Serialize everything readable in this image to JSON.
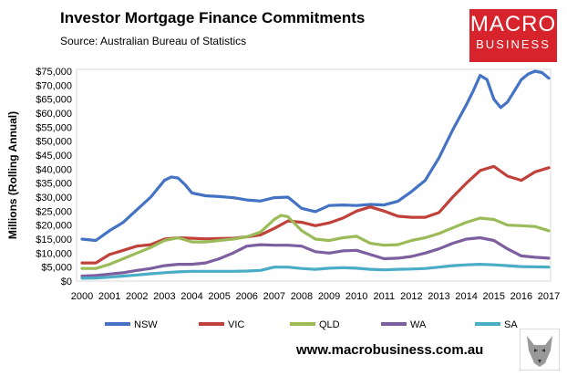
{
  "header": {
    "title": "Investor Mortgage Finance Commitments",
    "subtitle": "Source: Australian Bureau of Statistics"
  },
  "logo": {
    "line1": "MACRO",
    "line2": "BUSINESS"
  },
  "footer": {
    "url": "www.macrobusiness.com.au"
  },
  "colors": {
    "NSW": "#4472c4",
    "VIC": "#c0403a",
    "QLD": "#9bbb59",
    "WA": "#7d5fa0",
    "SA": "#4bacc6",
    "plot_border": "#d9d9d9"
  },
  "chart_data": {
    "type": "line",
    "ylabel": "Millions (Rolling Annual)",
    "xlabel": "",
    "xlim": [
      2000,
      2017
    ],
    "ylim": [
      0,
      75000
    ],
    "xticks": [
      "2000",
      "2001",
      "2002",
      "2003",
      "2004",
      "2005",
      "2006",
      "2007",
      "2008",
      "2009",
      "2010",
      "2011",
      "2012",
      "2013",
      "2014",
      "2015",
      "2016",
      "2017"
    ],
    "yticks": [
      "$0",
      "$5,000",
      "$10,000",
      "$15,000",
      "$20,000",
      "$25,000",
      "$30,000",
      "$35,000",
      "$40,000",
      "$45,000",
      "$50,000",
      "$55,000",
      "$60,000",
      "$65,000",
      "$70,000",
      "$75,000"
    ],
    "legend_position": "bottom",
    "grid": false,
    "series": [
      {
        "name": "NSW",
        "x": [
          2000,
          2000.5,
          2001,
          2001.5,
          2002,
          2002.5,
          2003,
          2003.25,
          2003.5,
          2003.75,
          2004,
          2004.5,
          2005,
          2005.5,
          2006,
          2006.5,
          2007,
          2007.5,
          2008,
          2008.5,
          2009,
          2009.5,
          2010,
          2010.5,
          2011,
          2011.5,
          2012,
          2012.5,
          2013,
          2013.5,
          2014,
          2014.25,
          2014.5,
          2014.75,
          2015,
          2015.25,
          2015.5,
          2015.75,
          2016,
          2016.25,
          2016.5,
          2016.75,
          2017
        ],
        "y": [
          15000,
          14500,
          18000,
          21000,
          25500,
          30000,
          36000,
          37200,
          36800,
          34500,
          31500,
          30500,
          30200,
          29800,
          29000,
          28600,
          29800,
          30000,
          26000,
          24800,
          27000,
          27200,
          27000,
          27400,
          27200,
          28500,
          32000,
          36000,
          44000,
          54000,
          63000,
          68000,
          73500,
          72000,
          65000,
          62000,
          64000,
          68000,
          72000,
          74000,
          75000,
          74500,
          72500
        ]
      },
      {
        "name": "VIC",
        "x": [
          2000,
          2000.5,
          2001,
          2001.5,
          2002,
          2002.5,
          2003,
          2003.5,
          2004,
          2004.5,
          2005,
          2005.5,
          2006,
          2006.5,
          2007,
          2007.5,
          2008,
          2008.5,
          2009,
          2009.5,
          2010,
          2010.5,
          2011,
          2011.5,
          2012,
          2012.5,
          2013,
          2013.5,
          2014,
          2014.5,
          2015,
          2015.5,
          2016,
          2016.5,
          2017
        ],
        "y": [
          6500,
          6500,
          9500,
          11000,
          12500,
          13000,
          15000,
          15500,
          15300,
          15100,
          15200,
          15300,
          15800,
          16500,
          18800,
          21500,
          21000,
          19800,
          20800,
          22500,
          25000,
          26500,
          25000,
          23200,
          22800,
          22800,
          24500,
          30000,
          35000,
          39500,
          41000,
          37500,
          36000,
          39000,
          40500
        ]
      },
      {
        "name": "QLD",
        "x": [
          2000,
          2000.5,
          2001,
          2001.5,
          2002,
          2002.5,
          2003,
          2003.5,
          2004,
          2004.5,
          2005,
          2005.5,
          2006,
          2006.5,
          2007,
          2007.25,
          2007.5,
          2008,
          2008.5,
          2009,
          2009.5,
          2010,
          2010.5,
          2011,
          2011.5,
          2012,
          2012.5,
          2013,
          2013.5,
          2014,
          2014.5,
          2015,
          2015.5,
          2016,
          2016.5,
          2017
        ],
        "y": [
          4500,
          4500,
          6000,
          8000,
          10000,
          12000,
          14500,
          15500,
          14000,
          14000,
          14500,
          15000,
          15800,
          17500,
          22000,
          23500,
          23000,
          18000,
          15000,
          14500,
          15500,
          16000,
          13500,
          12800,
          13000,
          14500,
          15500,
          17000,
          19000,
          21000,
          22500,
          22000,
          20000,
          19800,
          19500,
          18000
        ]
      },
      {
        "name": "WA",
        "x": [
          2000,
          2000.5,
          2001,
          2001.5,
          2002,
          2002.5,
          2003,
          2003.5,
          2004,
          2004.5,
          2005,
          2005.5,
          2006,
          2006.5,
          2007,
          2007.5,
          2008,
          2008.5,
          2009,
          2009.5,
          2010,
          2010.5,
          2011,
          2011.5,
          2012,
          2012.5,
          2013,
          2013.5,
          2014,
          2014.5,
          2015,
          2015.5,
          2016,
          2016.5,
          2017
        ],
        "y": [
          1800,
          2000,
          2500,
          3000,
          3800,
          4500,
          5500,
          6000,
          6000,
          6500,
          8000,
          10000,
          12500,
          13000,
          12800,
          12800,
          12500,
          10500,
          10000,
          10800,
          11000,
          9500,
          8000,
          8200,
          8800,
          10000,
          11500,
          13500,
          15000,
          15500,
          14500,
          11500,
          9000,
          8500,
          8200
        ]
      },
      {
        "name": "SA",
        "x": [
          2000,
          2000.5,
          2001,
          2001.5,
          2002,
          2002.5,
          2003,
          2003.5,
          2004,
          2004.5,
          2005,
          2005.5,
          2006,
          2006.5,
          2007,
          2007.5,
          2008,
          2008.5,
          2009,
          2009.5,
          2010,
          2010.5,
          2011,
          2011.5,
          2012,
          2012.5,
          2013,
          2013.5,
          2014,
          2014.5,
          2015,
          2015.5,
          2016,
          2016.5,
          2017
        ],
        "y": [
          1000,
          1100,
          1400,
          1800,
          2200,
          2600,
          3000,
          3300,
          3500,
          3500,
          3500,
          3500,
          3600,
          3800,
          5000,
          5000,
          4500,
          4200,
          4600,
          4800,
          4600,
          4200,
          4000,
          4200,
          4300,
          4500,
          5000,
          5500,
          5800,
          6000,
          5800,
          5500,
          5200,
          5100,
          5000
        ]
      }
    ]
  }
}
